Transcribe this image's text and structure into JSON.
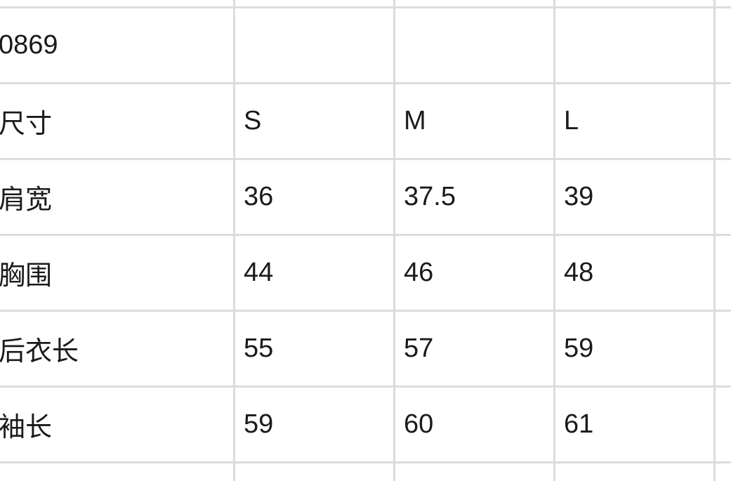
{
  "table": {
    "rows": [
      [
        "0869",
        "",
        "",
        ""
      ],
      [
        "尺寸",
        "S",
        "M",
        "L"
      ],
      [
        "肩宽",
        "36",
        "37.5",
        "39"
      ],
      [
        "胸围",
        "44",
        "46",
        "48"
      ],
      [
        "后衣长",
        "55",
        "57",
        "59"
      ],
      [
        "袖长",
        "59",
        "60",
        "61"
      ]
    ]
  },
  "colors": {
    "grid": "#dcdcdc",
    "text": "#1a1a1a",
    "background": "#ffffff"
  }
}
